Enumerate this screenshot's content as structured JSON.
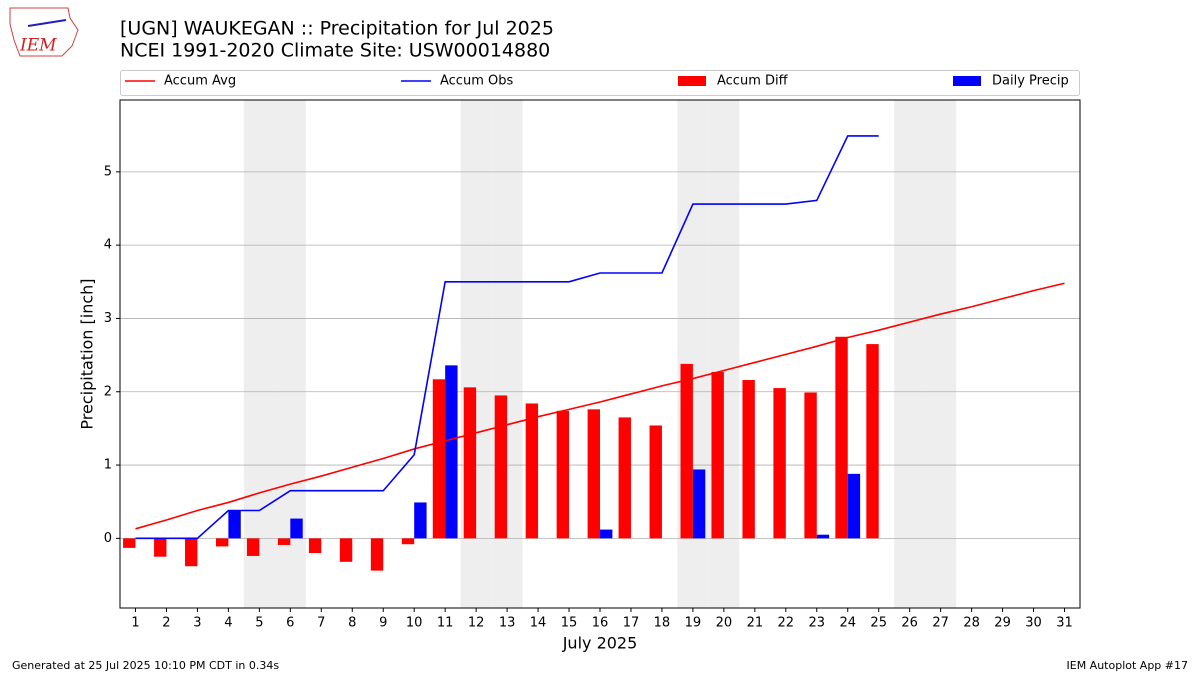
{
  "logo_text": "IEM",
  "footer_left": "Generated at 25 Jul 2025 10:10 PM CDT in 0.34s",
  "footer_right": "IEM Autoplot App #17",
  "chart_data": {
    "type": "combo",
    "title": "[UGN] WAUKEGAN :: Precipitation for Jul 2025",
    "subtitle": "NCEI 1991-2020 Climate Site: USW00014880",
    "xlabel": "July 2025",
    "ylabel": "Precipitation [inch]",
    "x": [
      1,
      2,
      3,
      4,
      5,
      6,
      7,
      8,
      9,
      10,
      11,
      12,
      13,
      14,
      15,
      16,
      17,
      18,
      19,
      20,
      21,
      22,
      23,
      24,
      25,
      26,
      27,
      28,
      29,
      30,
      31
    ],
    "xlim": [
      0.5,
      31.5
    ],
    "xticks": [
      1,
      2,
      3,
      4,
      5,
      6,
      7,
      8,
      9,
      10,
      11,
      12,
      13,
      14,
      15,
      16,
      17,
      18,
      19,
      20,
      21,
      22,
      23,
      24,
      25,
      26,
      27,
      28,
      29,
      30,
      31
    ],
    "ylim": [
      -0.95,
      5.98
    ],
    "yticks": [
      0,
      1,
      2,
      3,
      4,
      5
    ],
    "grid": true,
    "legend": "top",
    "shaded_days": [
      5,
      6,
      12,
      13,
      19,
      20,
      26,
      27
    ],
    "shade_color": "#eeeeee",
    "series": [
      {
        "name": "Accum Avg",
        "type": "line",
        "color": "#ff0000",
        "values": [
          0.13,
          0.25,
          0.38,
          0.49,
          0.62,
          0.74,
          0.85,
          0.97,
          1.09,
          1.22,
          1.33,
          1.44,
          1.55,
          1.66,
          1.76,
          1.86,
          1.97,
          2.08,
          2.18,
          2.29,
          2.4,
          2.51,
          2.62,
          2.74,
          2.84,
          2.95,
          3.06,
          3.16,
          3.27,
          3.38,
          3.48
        ]
      },
      {
        "name": "Accum Obs",
        "type": "line",
        "color": "#0000ff",
        "values": [
          0,
          0,
          0,
          0.38,
          0.38,
          0.65,
          0.65,
          0.65,
          0.65,
          1.14,
          3.5,
          3.5,
          3.5,
          3.5,
          3.5,
          3.62,
          3.62,
          3.62,
          4.56,
          4.56,
          4.56,
          4.56,
          4.61,
          5.49,
          5.49,
          null,
          null,
          null,
          null,
          null,
          null
        ]
      },
      {
        "name": "Accum Diff",
        "type": "bar",
        "color": "#ff0000",
        "values": [
          -0.13,
          -0.25,
          -0.38,
          -0.11,
          -0.24,
          -0.09,
          -0.2,
          -0.32,
          -0.44,
          -0.08,
          2.17,
          2.06,
          1.95,
          1.84,
          1.74,
          1.76,
          1.65,
          1.54,
          2.38,
          2.27,
          2.16,
          2.05,
          1.99,
          2.75,
          2.65,
          null,
          null,
          null,
          null,
          null,
          null
        ]
      },
      {
        "name": "Daily Precip",
        "type": "bar",
        "color": "#0000ff",
        "values": [
          0,
          0,
          0,
          0.38,
          0,
          0.27,
          0,
          0,
          0,
          0.49,
          2.36,
          0,
          0,
          0,
          0,
          0.12,
          0,
          0,
          0.94,
          0,
          0,
          0,
          0.05,
          0.88,
          0,
          null,
          null,
          null,
          null,
          null,
          null
        ]
      }
    ]
  }
}
